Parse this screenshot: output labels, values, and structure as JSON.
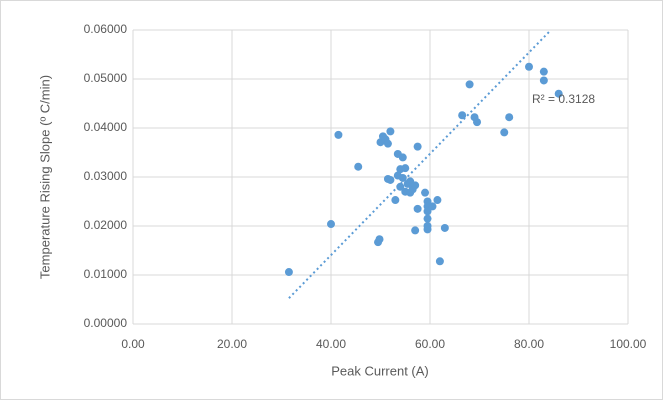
{
  "chart_data": {
    "type": "scatter",
    "x_label": "Peak Current (A)",
    "y_label": "Temperature Rising Slope (º C/min)",
    "series": [
      {
        "color": "#5b9bd5",
        "x": [
          31.5,
          40,
          41.5,
          45.5,
          49.5,
          49.8,
          50,
          50.5,
          51,
          51.5,
          52,
          51.5,
          52,
          53,
          53.5,
          54.5,
          53.5,
          54,
          54.5,
          55,
          55.5,
          56,
          56.5,
          54,
          55,
          56,
          57,
          57.5,
          57.5,
          57,
          59,
          59.5,
          59.5,
          59.5,
          59.5,
          59.5,
          59.5,
          60.5,
          61.5,
          62,
          63,
          66.5,
          68,
          69,
          69.5,
          75,
          76,
          80,
          83,
          83,
          86
        ],
        "values": [
          0.0106,
          0.0204,
          0.0386,
          0.0321,
          0.0167,
          0.0173,
          0.0371,
          0.0383,
          0.0377,
          0.0368,
          0.0393,
          0.0296,
          0.0294,
          0.0253,
          0.0347,
          0.034,
          0.0303,
          0.0316,
          0.0298,
          0.0318,
          0.0286,
          0.0291,
          0.0275,
          0.028,
          0.027,
          0.0268,
          0.0283,
          0.0362,
          0.0235,
          0.0191,
          0.0268,
          0.025,
          0.024,
          0.023,
          0.0215,
          0.02,
          0.0193,
          0.024,
          0.0253,
          0.0128,
          0.0196,
          0.0426,
          0.0489,
          0.0422,
          0.0412,
          0.0391,
          0.0422,
          0.0525,
          0.0515,
          0.0497,
          0.047
        ]
      }
    ],
    "trendline": {
      "label": "R² = 0.3128",
      "slope": 0.001034,
      "intercept": -0.0273
    },
    "xlim": [
      0,
      100
    ],
    "xticks": [
      {
        "value": 0,
        "label": "0.00"
      },
      {
        "value": 20,
        "label": "20.00"
      },
      {
        "value": 40,
        "label": "40.00"
      },
      {
        "value": 60,
        "label": "60.00"
      },
      {
        "value": 80,
        "label": "80.00"
      },
      {
        "value": 100,
        "label": "100.00"
      }
    ],
    "ylim": [
      0,
      0.06
    ],
    "yticks": [
      {
        "value": 0,
        "label": "0.00000"
      },
      {
        "value": 0.01,
        "label": "0.01000"
      },
      {
        "value": 0.02,
        "label": "0.02000"
      },
      {
        "value": 0.03,
        "label": "0.03000"
      },
      {
        "value": 0.04,
        "label": "0.04000"
      },
      {
        "value": 0.05,
        "label": "0.05000"
      },
      {
        "value": 0.06,
        "label": "0.06000"
      }
    ],
    "grid": true
  }
}
